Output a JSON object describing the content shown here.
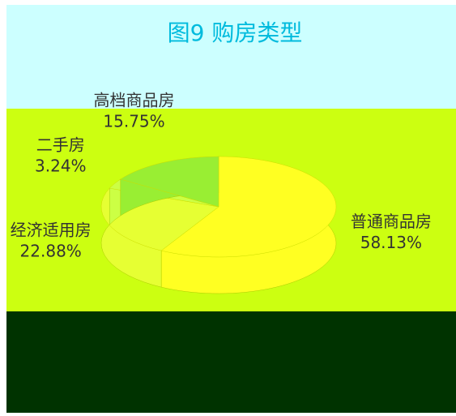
{
  "chart_data": {
    "type": "pie",
    "title": "图9 购房类型",
    "categories": [
      "普通商品房",
      "经济适用房",
      "二手房",
      "高档商品房"
    ],
    "values": [
      58.13,
      22.88,
      3.24,
      15.75
    ],
    "value_labels": [
      "58.13%",
      "22.88%",
      "3.24%",
      "15.75%"
    ],
    "colors": [
      "#ffff22",
      "#e6ff33",
      "#ccff44",
      "#99ee33"
    ]
  }
}
